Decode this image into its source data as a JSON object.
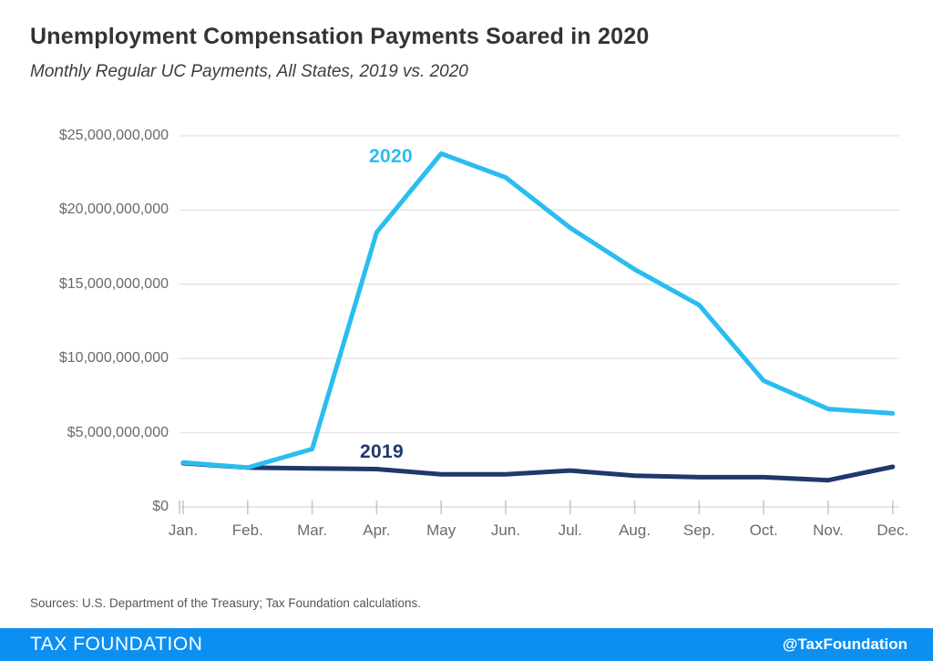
{
  "chart_data": {
    "type": "line",
    "title": "Unemployment Compensation Payments Soared in 2020",
    "subtitle": "Monthly Regular UC Payments, All States, 2019 vs. 2020",
    "x_labels": [
      "Jan.",
      "Feb.",
      "Mar.",
      "Apr.",
      "May",
      "Jun.",
      "Jul.",
      "Aug.",
      "Sep.",
      "Oct.",
      "Nov.",
      "Dec."
    ],
    "y_ticks": [
      {
        "value_billions": 0,
        "label": "$0"
      },
      {
        "value_billions": 5,
        "label": "$5,000,000,000"
      },
      {
        "value_billions": 10,
        "label": "$10,000,000,000"
      },
      {
        "value_billions": 15,
        "label": "$15,000,000,000"
      },
      {
        "value_billions": 20,
        "label": "$20,000,000,000"
      },
      {
        "value_billions": 25,
        "label": "$25,000,000,000"
      }
    ],
    "ylim_billions": [
      0,
      25
    ],
    "grid": "horizontal-only",
    "legend_position": "inline-labels-on-lines",
    "series": [
      {
        "name": "2020",
        "color": "#29bdf0",
        "values_billions": [
          3.0,
          2.65,
          3.9,
          18.5,
          23.8,
          22.2,
          18.8,
          16.0,
          13.6,
          8.5,
          6.6,
          6.3
        ]
      },
      {
        "name": "2019",
        "color": "#20386a",
        "values_billions": [
          2.95,
          2.65,
          2.6,
          2.55,
          2.2,
          2.2,
          2.45,
          2.1,
          2.0,
          2.0,
          1.8,
          2.7
        ]
      }
    ]
  },
  "footer": {
    "sources": "Sources: U.S. Department of the Treasury; Tax Foundation calculations.",
    "brand": "TAX FOUNDATION",
    "handle": "@TaxFoundation",
    "bar_color": "#0d8ff2"
  }
}
